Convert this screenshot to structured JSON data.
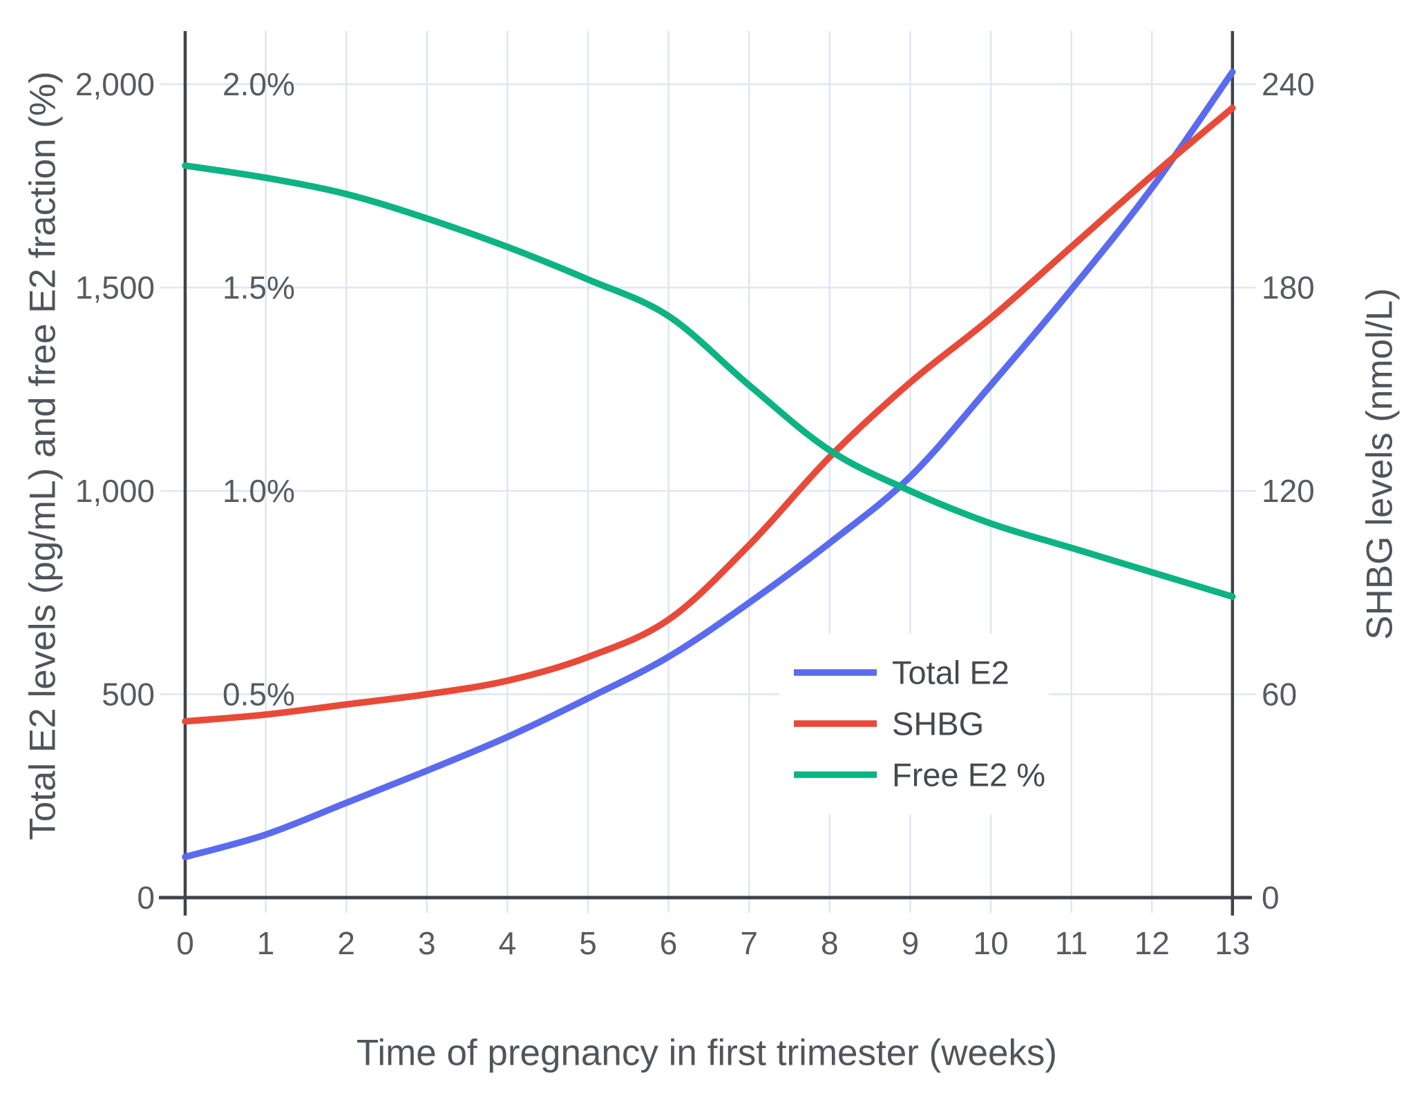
{
  "chart_data": {
    "type": "line",
    "title": "",
    "xlabel": "Time of pregnancy in first trimester (weeks)",
    "ylabel_left": "Total E2 levels (pg/mL) and free E2 fraction (%)",
    "ylabel_right": "SHBG levels (nmol/L)",
    "x_axis": {
      "range": [
        0,
        13
      ],
      "ticks": [
        {
          "value": 0,
          "label": "0"
        },
        {
          "value": 1,
          "label": "1"
        },
        {
          "value": 2,
          "label": "2"
        },
        {
          "value": 3,
          "label": "3"
        },
        {
          "value": 4,
          "label": "4"
        },
        {
          "value": 5,
          "label": "5"
        },
        {
          "value": 6,
          "label": "6"
        },
        {
          "value": 7,
          "label": "7"
        },
        {
          "value": 8,
          "label": "8"
        },
        {
          "value": 9,
          "label": "9"
        },
        {
          "value": 10,
          "label": "10"
        },
        {
          "value": 11,
          "label": "11"
        },
        {
          "value": 12,
          "label": "12"
        },
        {
          "value": 13,
          "label": "13"
        }
      ]
    },
    "left_axis": {
      "range": [
        0,
        2000
      ],
      "gridlines": [
        500,
        1000,
        1500,
        2000
      ],
      "ticks": [
        {
          "value": 0,
          "label": "0"
        },
        {
          "value": 500,
          "label": "500"
        },
        {
          "value": 1000,
          "label": "1,000"
        },
        {
          "value": 1500,
          "label": "1,500"
        },
        {
          "value": 2000,
          "label": "2,000"
        }
      ],
      "percent_ticks": [
        {
          "value": 500,
          "label": "0.5%"
        },
        {
          "value": 1000,
          "label": "1.0%"
        },
        {
          "value": 1500,
          "label": "1.5%"
        },
        {
          "value": 2000,
          "label": "2.0%"
        }
      ]
    },
    "right_axis": {
      "range": [
        0,
        240
      ],
      "ticks": [
        {
          "value": 0,
          "label": "0"
        },
        {
          "value": 60,
          "label": "60"
        },
        {
          "value": 120,
          "label": "120"
        },
        {
          "value": 180,
          "label": "180"
        },
        {
          "value": 240,
          "label": "240"
        }
      ]
    },
    "weeks": [
      0,
      1,
      2,
      3,
      4,
      5,
      6,
      7,
      8,
      9,
      10,
      11,
      12,
      13
    ],
    "series": [
      {
        "name": "Total E2",
        "axis": "left",
        "unit": "pg/mL",
        "color": "#5a6bef",
        "values": [
          100,
          155,
          233,
          312,
          395,
          490,
          592,
          725,
          872,
          1035,
          1260,
          1495,
          1745,
          2030
        ]
      },
      {
        "name": "SHBG",
        "axis": "right",
        "unit": "nmol/L",
        "color": "#e84a3a",
        "values": [
          52,
          54,
          57,
          60,
          64,
          71,
          82,
          104,
          130,
          152,
          171,
          192,
          213,
          233
        ]
      },
      {
        "name": "Free E2 %",
        "axis": "left_percent",
        "unit": "%",
        "color": "#0db383",
        "values": [
          1.8,
          1.77,
          1.73,
          1.67,
          1.6,
          1.52,
          1.43,
          1.26,
          1.1,
          1.0,
          0.92,
          0.86,
          0.8,
          0.74
        ]
      }
    ],
    "legend": {
      "position": "inside middle-right",
      "entries": [
        "Total E2",
        "SHBG",
        "Free E2 %"
      ]
    },
    "grid": true,
    "colors": {
      "gridline": "#dfe5f2",
      "axis": "#3f444b",
      "text": "#565b62",
      "background": "#ffffff"
    }
  }
}
